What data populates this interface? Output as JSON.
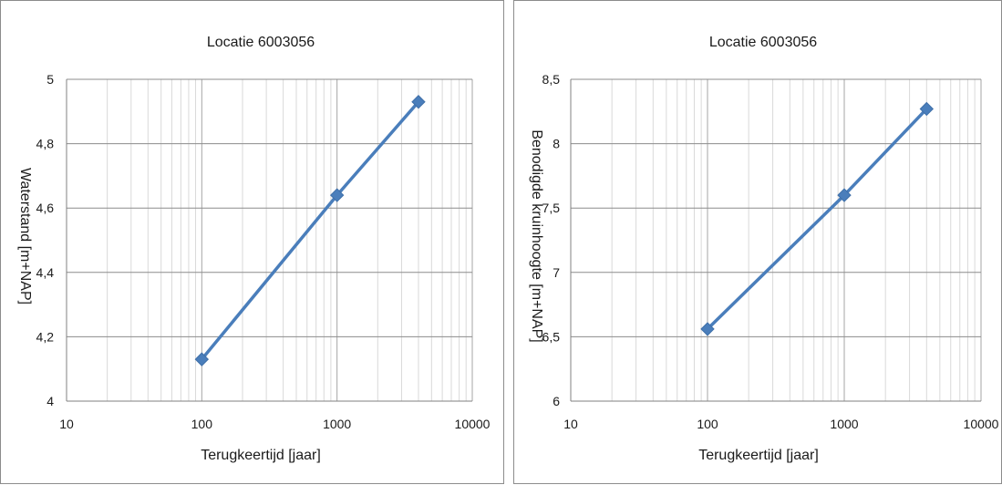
{
  "chart_data": [
    {
      "type": "line",
      "title": "Locatie 6003056",
      "xlabel": "Terugkeertijd [jaar]",
      "ylabel": "Waterstand [m+NAP]",
      "x_scale": "log",
      "xlim": [
        10,
        10000
      ],
      "ylim": [
        4,
        5
      ],
      "x_ticks": [
        10,
        100,
        1000,
        10000
      ],
      "x_tick_labels": [
        "10",
        "100",
        "1000",
        "10000"
      ],
      "y_ticks": [
        4,
        4.2,
        4.4,
        4.6,
        4.8,
        5
      ],
      "y_tick_labels": [
        "4",
        "4,2",
        "4,4",
        "4,6",
        "4,8",
        "5"
      ],
      "grid": true,
      "marker": "diamond",
      "color": "#4a7ebb",
      "series": [
        {
          "x": [
            100,
            1000,
            4000
          ],
          "y": [
            4.13,
            4.64,
            4.93
          ]
        }
      ]
    },
    {
      "type": "line",
      "title": "Locatie 6003056",
      "xlabel": "Terugkeertijd [jaar]",
      "ylabel": "Benodigde kruinhoogte [m+NAP]",
      "x_scale": "log",
      "xlim": [
        10,
        10000
      ],
      "ylim": [
        6,
        8.5
      ],
      "x_ticks": [
        10,
        100,
        1000,
        10000
      ],
      "x_tick_labels": [
        "10",
        "100",
        "1000",
        "10000"
      ],
      "y_ticks": [
        6,
        6.5,
        7,
        7.5,
        8,
        8.5
      ],
      "y_tick_labels": [
        "6",
        "6,5",
        "7",
        "7,5",
        "8",
        "8,5"
      ],
      "grid": true,
      "marker": "diamond",
      "color": "#4a7ebb",
      "series": [
        {
          "x": [
            100,
            1000,
            4000
          ],
          "y": [
            6.56,
            7.6,
            8.27
          ]
        }
      ]
    }
  ]
}
